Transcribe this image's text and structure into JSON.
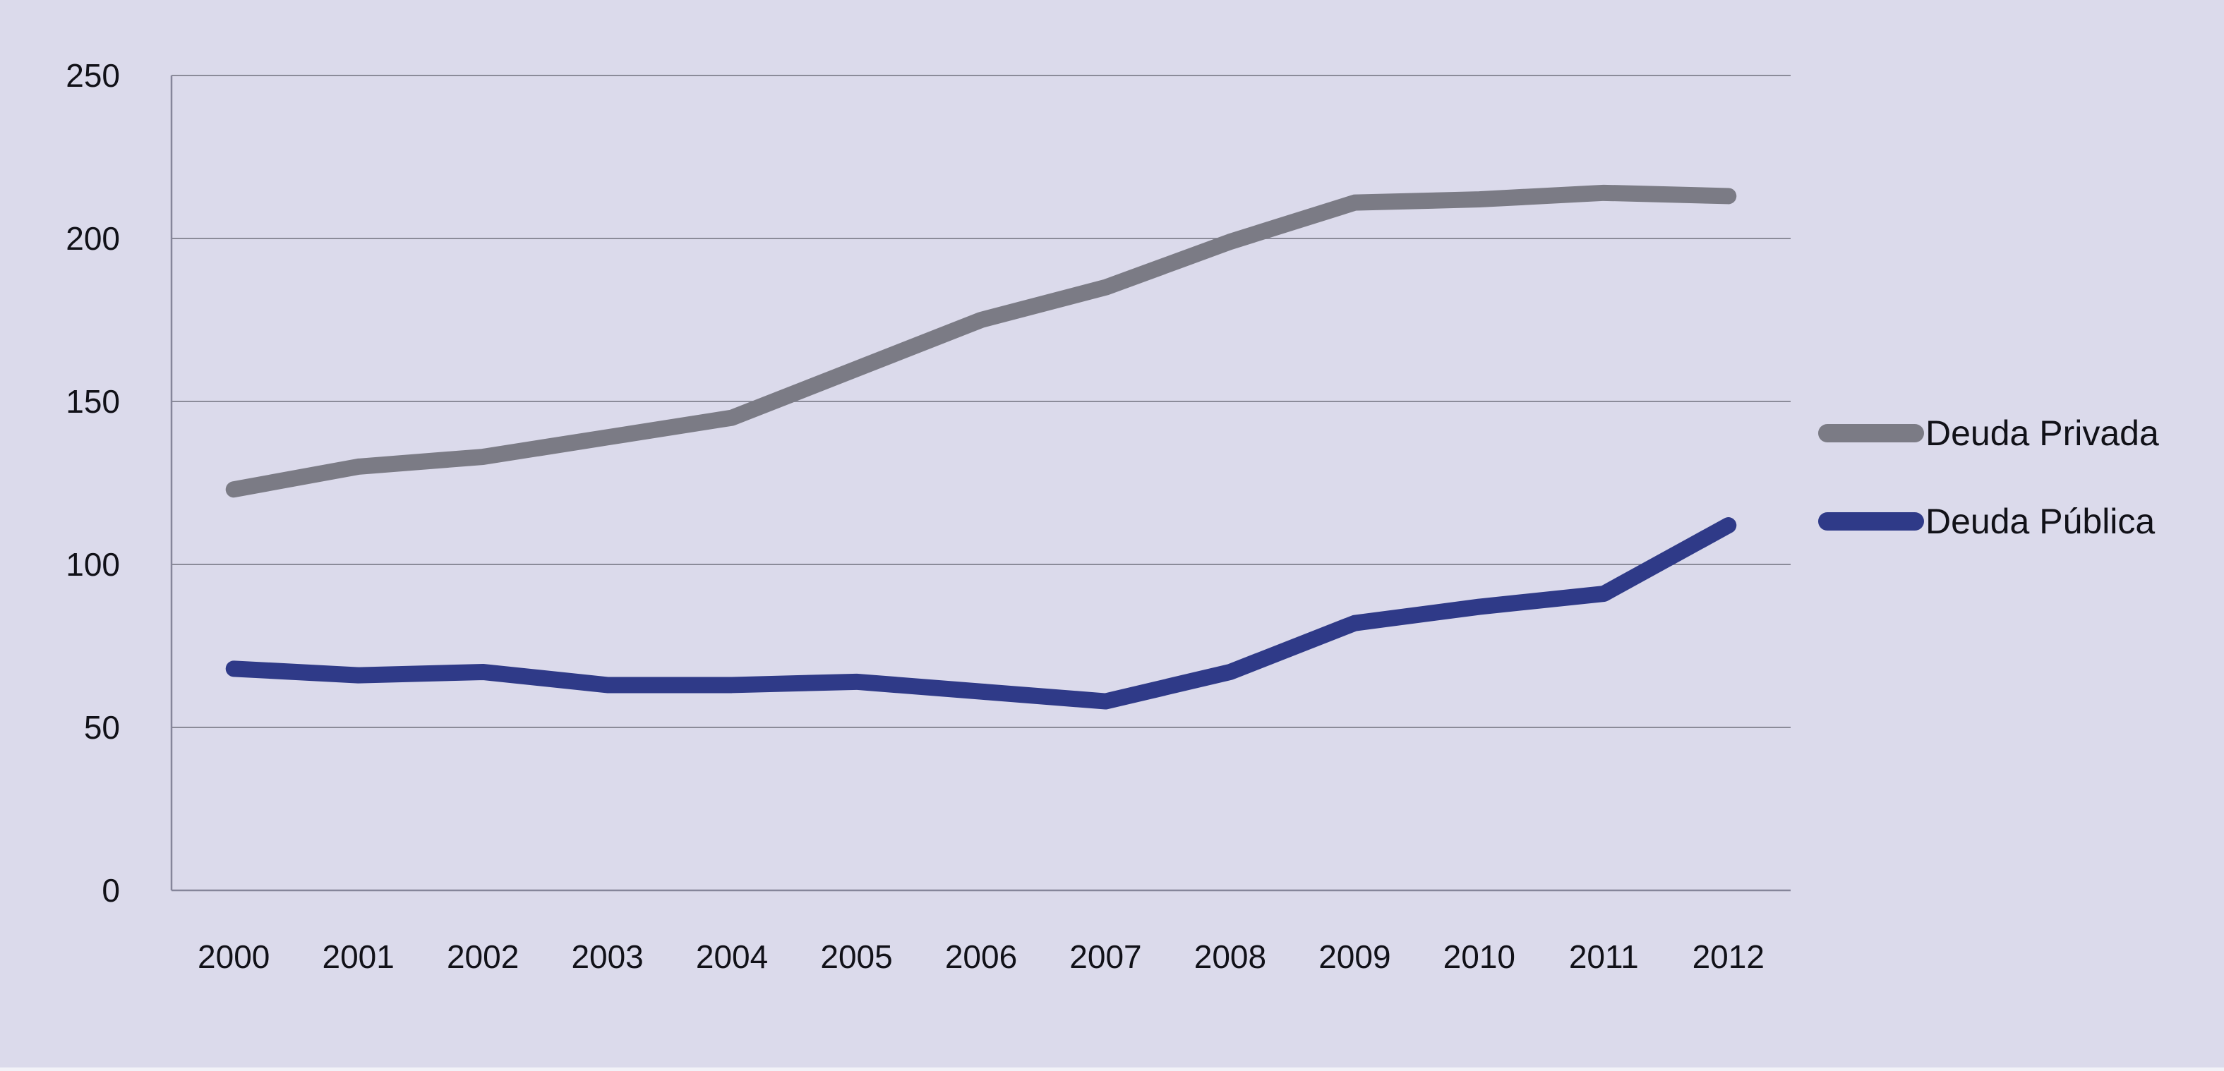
{
  "chart_data": {
    "type": "line",
    "title": "",
    "categories": [
      "2000",
      "2001",
      "2002",
      "2003",
      "2004",
      "2005",
      "2006",
      "2007",
      "2008",
      "2009",
      "2010",
      "2011",
      "2012"
    ],
    "series": [
      {
        "name": "Deuda Privada",
        "color": "#7b7b85",
        "values": [
          123,
          130,
          133,
          139,
          145,
          160,
          175,
          185,
          199,
          211,
          212,
          214,
          213
        ]
      },
      {
        "name": "Deuda Pública",
        "color": "#2f3a88",
        "values": [
          68,
          66,
          67,
          63,
          63,
          64,
          61,
          58,
          67,
          82,
          87,
          91,
          112
        ]
      }
    ],
    "xlabel": "",
    "ylabel": "",
    "ylim": [
      0,
      250
    ],
    "yticks": [
      0,
      50,
      100,
      150,
      200,
      250
    ],
    "grid": "horizontal",
    "legend_position": "right"
  },
  "colors": {
    "background": "#dbdaeb",
    "gridline": "#8b8b99",
    "axis": "#85859a",
    "text": "#111118",
    "bottom_strip": "#f2f2f8"
  }
}
